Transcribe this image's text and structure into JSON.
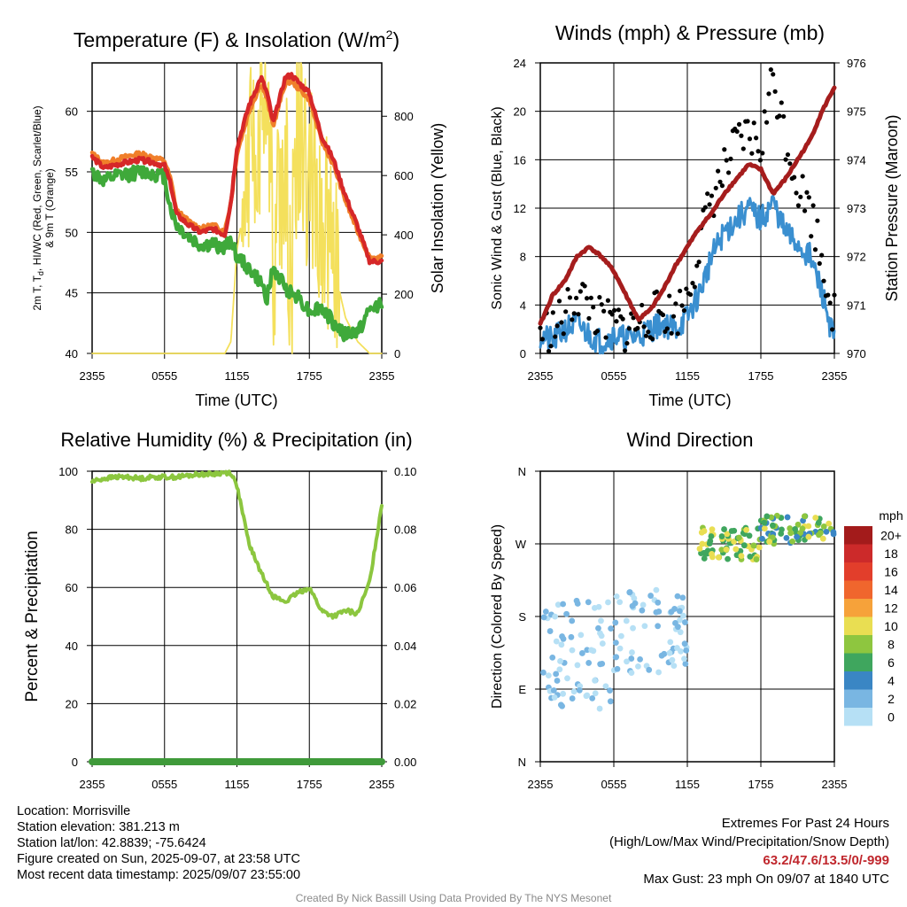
{
  "panels": {
    "temperature": {
      "title_main": "Temperature (F) & Insolation (W/m",
      "title_sup": "2",
      "title_end": ")",
      "ylabel_left_line1": "2m T, T",
      "ylabel_left_sub": "d",
      "ylabel_left_line1_rest": ", HI/WC (Red, Green, Scarlet/Blue)",
      "ylabel_left_line2": "& 9m T (Orange)",
      "ylabel_right": "Solar Insolation (Yellow)",
      "xlabel": "Time (UTC)"
    },
    "winds": {
      "title": "Winds (mph) & Pressure (mb)",
      "ylabel_left": "Sonic Wind & Gust (Blue, Black)",
      "ylabel_right": "Station Pressure (Maroon)",
      "xlabel": "Time (UTC)"
    },
    "humidity": {
      "title": "Relative Humidity (%) & Precipitation (in)",
      "ylabel_left": "Percent & Precipitation"
    },
    "direction": {
      "title": "Wind Direction",
      "ylabel_left": "Direction (Colored By Speed)",
      "legend_title": "mph"
    }
  },
  "chart_data": [
    {
      "type": "line",
      "id": "temperature",
      "x_ticks": [
        "2355",
        "0555",
        "1155",
        "1755",
        "2355"
      ],
      "ylim_left": [
        40,
        64
      ],
      "y_ticks_left": [
        40,
        45,
        50,
        55,
        60
      ],
      "ylim_right": [
        0,
        980
      ],
      "y_ticks_right": [
        0,
        200,
        400,
        600,
        800
      ],
      "grid": true,
      "x_hours": [
        0,
        1,
        2,
        3,
        4,
        5,
        6,
        6.5,
        7,
        8,
        9,
        10,
        11,
        11.5,
        12,
        13,
        14,
        14.5,
        15,
        16,
        16.5,
        17,
        18,
        19,
        20,
        21,
        22,
        23,
        24
      ],
      "series": [
        {
          "name": "2m T",
          "color": "#d62728",
          "axis": "left",
          "values": [
            56.2,
            55.3,
            55.6,
            55.8,
            56.0,
            55.8,
            55.5,
            54.0,
            51.5,
            50.6,
            50.0,
            50.3,
            49.8,
            52.5,
            57.0,
            60.5,
            62.8,
            61.5,
            59.0,
            62.8,
            63.0,
            62.5,
            61.5,
            58.0,
            56.0,
            53.0,
            50.5,
            47.6,
            47.6
          ]
        },
        {
          "name": "9m T",
          "color": "#f07f2a",
          "axis": "left",
          "values": [
            56.5,
            55.7,
            56.0,
            56.3,
            56.5,
            56.2,
            55.9,
            54.4,
            51.8,
            50.9,
            50.3,
            50.6,
            50.1,
            52.5,
            56.5,
            60.0,
            62.3,
            61.0,
            58.8,
            62.3,
            62.5,
            62.0,
            61.0,
            57.6,
            55.6,
            52.6,
            50.1,
            47.9,
            47.9
          ]
        },
        {
          "name": "Td",
          "color": "#3fa93a",
          "axis": "left",
          "values": [
            55.0,
            54.2,
            54.6,
            54.8,
            55.0,
            54.9,
            54.6,
            52.0,
            50.6,
            49.6,
            48.9,
            49.0,
            48.7,
            49.5,
            48.0,
            47.0,
            45.8,
            44.6,
            47.0,
            45.5,
            45.0,
            44.8,
            43.5,
            43.8,
            42.5,
            41.5,
            41.8,
            43.5,
            44.3
          ]
        },
        {
          "name": "Solar",
          "color": "#f4e05c",
          "axis": "right",
          "values": [
            0,
            0,
            0,
            0,
            0,
            0,
            0,
            0,
            0,
            0,
            0,
            0,
            0,
            40,
            350,
            600,
            800,
            950,
            300,
            700,
            200,
            800,
            600,
            500,
            300,
            120,
            40,
            0,
            0
          ]
        }
      ]
    },
    {
      "type": "line",
      "id": "winds",
      "x_ticks": [
        "2355",
        "0555",
        "1155",
        "1755",
        "2355"
      ],
      "ylim_left": [
        0,
        24
      ],
      "y_ticks_left": [
        0,
        4,
        8,
        12,
        16,
        20,
        24
      ],
      "ylim_right": [
        970,
        976
      ],
      "y_ticks_right": [
        970,
        971,
        972,
        973,
        974,
        975,
        976
      ],
      "grid": true,
      "x_hours": [
        0,
        1,
        2,
        3,
        4,
        5,
        6,
        7,
        8,
        9,
        10,
        11,
        12,
        13,
        14,
        15,
        16,
        17,
        18,
        19,
        20,
        21,
        22,
        23,
        24
      ],
      "series": [
        {
          "name": "Sonic Wind",
          "color": "#3a8fd0",
          "axis": "left",
          "values": [
            1.5,
            1.0,
            2.0,
            2.5,
            1.5,
            1.0,
            1.5,
            1.2,
            1.5,
            2.0,
            2.5,
            2.0,
            3.0,
            5.0,
            8.0,
            10.0,
            11.0,
            12.0,
            11.0,
            12.5,
            10.0,
            9.0,
            8.0,
            5.0,
            1.0
          ]
        },
        {
          "name": "Gust",
          "color": "#000000",
          "axis": "left",
          "style": "points",
          "values": [
            2.0,
            2.0,
            3.0,
            5.0,
            4.0,
            2.5,
            2.5,
            2.0,
            2.5,
            3.0,
            3.5,
            3.0,
            5.0,
            9.0,
            13.0,
            15.0,
            17.0,
            18.0,
            17.0,
            23.0,
            18.0,
            14.0,
            12.0,
            8.0,
            3.0
          ]
        },
        {
          "name": "Pressure",
          "color": "#a51d1d",
          "axis": "right",
          "values": [
            970.6,
            971.2,
            971.5,
            972.0,
            972.2,
            972.0,
            971.7,
            971.2,
            970.7,
            970.9,
            971.3,
            971.8,
            972.2,
            972.6,
            972.9,
            973.3,
            973.6,
            973.9,
            973.8,
            973.3,
            973.6,
            974.0,
            974.4,
            975.0,
            975.5
          ]
        }
      ]
    },
    {
      "type": "line",
      "id": "humidity",
      "x_ticks": [
        "2355",
        "0555",
        "1155",
        "1755",
        "2355"
      ],
      "ylim_left": [
        0,
        100
      ],
      "y_ticks_left": [
        0,
        20,
        40,
        60,
        80,
        100
      ],
      "ylim_right": [
        0,
        0.1
      ],
      "y_ticks_right": [
        "0.00",
        "0.02",
        "0.04",
        "0.06",
        "0.08",
        "0.10"
      ],
      "grid": true,
      "x_hours": [
        0,
        1,
        2,
        3,
        4,
        5,
        6,
        7,
        8,
        9,
        10,
        11,
        11.5,
        12,
        13,
        14,
        15,
        16,
        17,
        18,
        19,
        20,
        21,
        22,
        23,
        24
      ],
      "series": [
        {
          "name": "Relative Humidity",
          "color": "#8cc63f",
          "axis": "left",
          "values": [
            96.5,
            97.5,
            98.0,
            98.0,
            97.5,
            98.0,
            98.0,
            98.0,
            98.5,
            99.0,
            99.0,
            99.5,
            99.5,
            95.0,
            75.0,
            65.0,
            57.0,
            55.0,
            58.0,
            60.0,
            52.0,
            50.0,
            52.0,
            51.0,
            62.0,
            88.5
          ]
        },
        {
          "name": "Precipitation",
          "color": "#3f9a3a",
          "axis": "right",
          "values": [
            0,
            0,
            0,
            0,
            0,
            0,
            0,
            0,
            0,
            0,
            0,
            0,
            0,
            0,
            0,
            0,
            0,
            0,
            0,
            0,
            0,
            0,
            0,
            0,
            0,
            0
          ]
        }
      ]
    },
    {
      "type": "scatter",
      "id": "direction",
      "x_ticks": [
        "2355",
        "0555",
        "1155",
        "1755",
        "2355"
      ],
      "y_ticks_left": [
        "N",
        "E",
        "S",
        "W",
        "N"
      ],
      "ylim_left": [
        0,
        360
      ],
      "grid": true,
      "color_scale": [
        {
          "label": "20+",
          "color": "#a31b1b"
        },
        {
          "label": "18",
          "color": "#cc2a2a"
        },
        {
          "label": "16",
          "color": "#e23e2b"
        },
        {
          "label": "14",
          "color": "#f0662d"
        },
        {
          "label": "12",
          "color": "#f6a23a"
        },
        {
          "label": "10",
          "color": "#e9de52"
        },
        {
          "label": "8",
          "color": "#8ec63f"
        },
        {
          "label": "6",
          "color": "#3fa65e"
        },
        {
          "label": "4",
          "color": "#3a86c4"
        },
        {
          "label": "2",
          "color": "#79b6e2"
        },
        {
          "label": "0",
          "color": "#b6e0f5"
        }
      ],
      "points_summary": [
        {
          "hour_range": [
            0,
            6
          ],
          "direction_range": [
            60,
            200
          ],
          "speed": [
            0,
            4
          ]
        },
        {
          "hour_range": [
            6,
            12
          ],
          "direction_range": [
            110,
            215
          ],
          "speed": [
            0,
            4
          ]
        },
        {
          "hour_range": [
            13,
            18
          ],
          "direction_range": [
            250,
            290
          ],
          "speed": [
            6,
            12
          ]
        },
        {
          "hour_range": [
            18,
            24
          ],
          "direction_range": [
            270,
            305
          ],
          "speed": [
            4,
            12
          ]
        }
      ]
    }
  ],
  "info_left": {
    "location": "Location: Morrisville",
    "elevation": "Station elevation: 381.213 m",
    "latlon": "Station lat/lon: 42.8839; -75.6424",
    "created": "Figure created on Sun, 2025-09-07, at 23:58 UTC",
    "recent": "Most recent data timestamp: 2025/09/07 23:55:00"
  },
  "info_right": {
    "heading": "Extremes For Past 24 Hours",
    "subheading": "(High/Low/Max Wind/Precipitation/Snow Depth)",
    "values": "63.2/47.6/13.5/0/-999",
    "gust": "Max Gust: 23 mph On 09/07 at 1840 UTC"
  },
  "credit": "Created By Nick Bassill Using Data Provided By The NYS Mesonet"
}
